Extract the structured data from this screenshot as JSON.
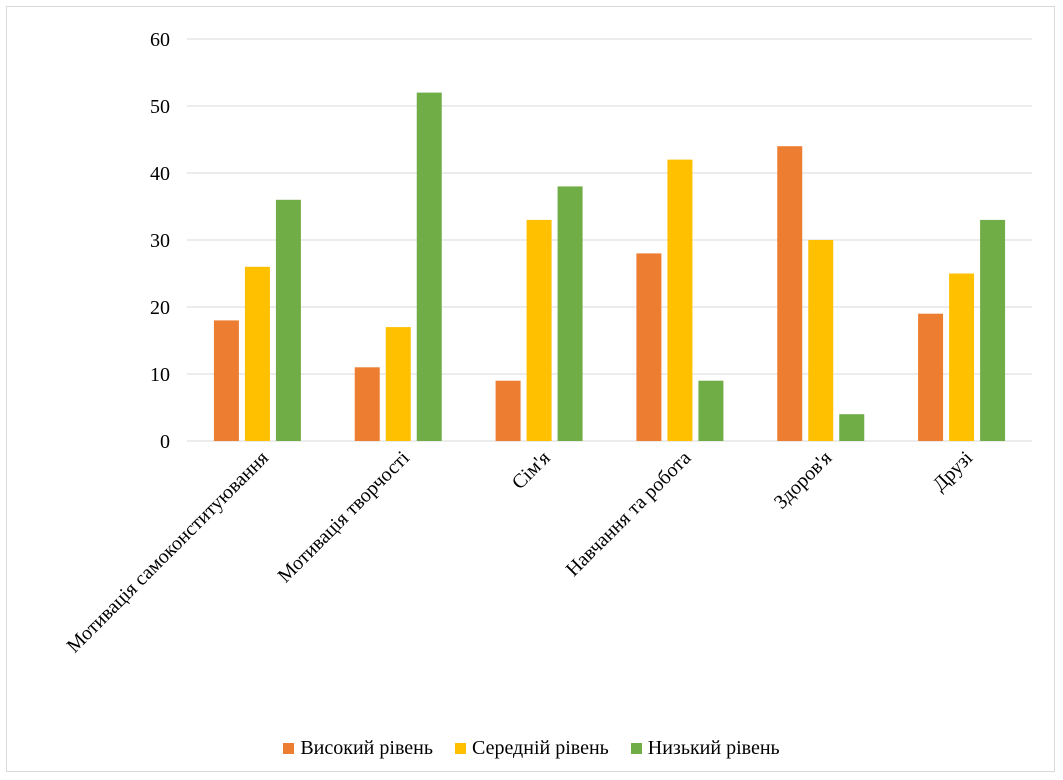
{
  "chart_data": {
    "type": "bar",
    "title": "",
    "xlabel": "",
    "ylabel": "",
    "ylim": [
      0,
      60
    ],
    "yticks": [
      0,
      10,
      20,
      30,
      40,
      50,
      60
    ],
    "grid": true,
    "legend_position": "bottom",
    "categories": [
      "Мотивація самоконституювання",
      "Мотивація творчості",
      "Сім'я",
      "Навчання та робота",
      "Здоров'я",
      "Друзі"
    ],
    "series": [
      {
        "name": "Високий рівень",
        "color": "#ED7D31",
        "values": [
          18,
          11,
          9,
          28,
          44,
          19
        ]
      },
      {
        "name": "Середній рівень",
        "color": "#FFC000",
        "values": [
          26,
          17,
          33,
          42,
          30,
          25
        ]
      },
      {
        "name": "Низький рівень",
        "color": "#70AD47",
        "values": [
          36,
          52,
          38,
          9,
          4,
          33
        ]
      }
    ],
    "gridline_color": "#d9d9d9"
  }
}
